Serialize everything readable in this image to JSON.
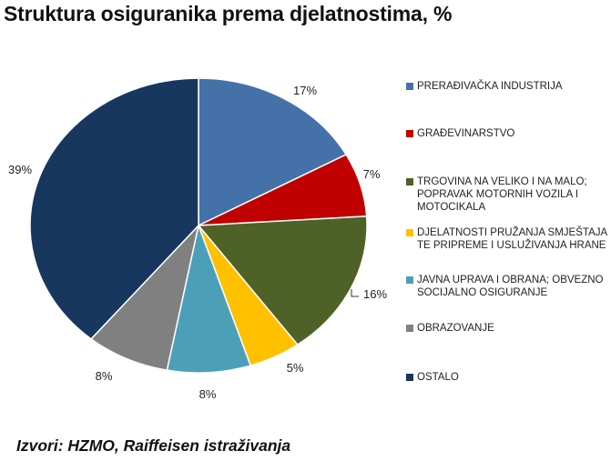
{
  "title": "Struktura osiguranika prema djelatnostima, %",
  "source": "Izvori: HZMO, Raiffeisen istraživanja",
  "chart_data": {
    "type": "pie",
    "title": "Struktura osiguranika prema djelatnostima, %",
    "slices": [
      {
        "label": "PRERAĐIVAČKA INDUSTRIJA",
        "value": 17,
        "value_label": "17%",
        "color": "#4472A8"
      },
      {
        "label": "GRAĐEVINARSTVO",
        "value": 7,
        "value_label": "7%",
        "color": "#C00000"
      },
      {
        "label": "TRGOVINA NA VELIKO I NA MALO; POPRAVAK MOTORNIH VOZILA I MOTOCIKALA",
        "value": 16,
        "value_label": "16%",
        "color": "#4E6228"
      },
      {
        "label": "DJELATNOSTI PRUŽANJA SMJEŠTAJA TE PRIPREME I USLUŽIVANJA HRANE",
        "value": 5,
        "value_label": "5%",
        "color": "#FFC000"
      },
      {
        "label": "JAVNA UPRAVA I OBRANA; OBVEZNO SOCIJALNO OSIGURANJE",
        "value": 8,
        "value_label": "8%",
        "color": "#4BA0B8"
      },
      {
        "label": "OBRAZOVANJE",
        "value": 8,
        "value_label": "8%",
        "color": "#808080"
      },
      {
        "label": "OSTALO",
        "value": 39,
        "value_label": "39%",
        "color": "#17375E"
      }
    ],
    "legend_position": "right"
  }
}
